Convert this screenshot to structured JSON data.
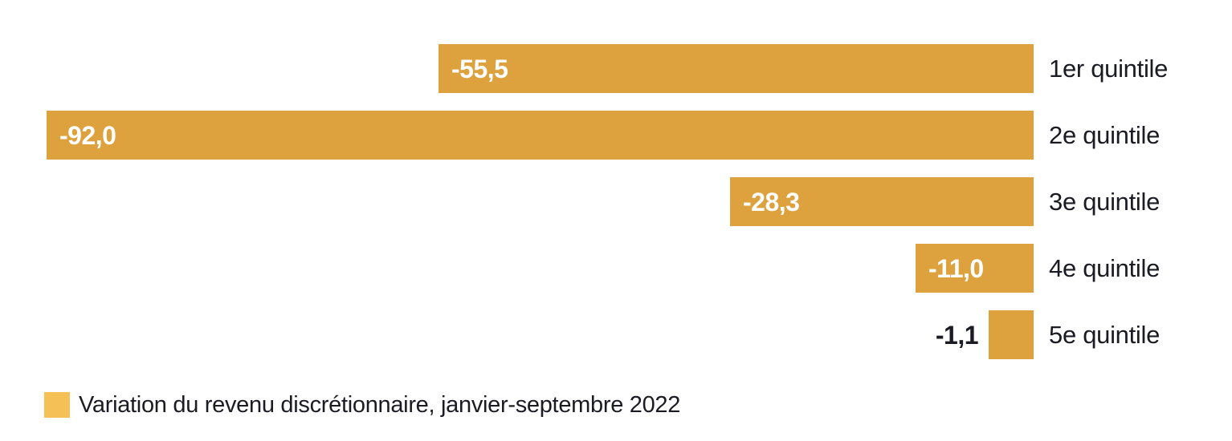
{
  "chart_data": {
    "type": "bar",
    "orientation": "horizontal",
    "categories": [
      "1er quintile",
      "2e quintile",
      "3e quintile",
      "4e quintile",
      "5e quintile"
    ],
    "series": [
      {
        "name": "Variation du revenu discrétionnaire, janvier-septembre 2022",
        "values": [
          -55.5,
          -92.0,
          -28.3,
          -11.0,
          -1.1
        ],
        "values_display": [
          "-55,5",
          "-92,0",
          "-28,3",
          "-11,0",
          "-1,1"
        ]
      }
    ],
    "value_axis_range": [
      -92,
      0
    ],
    "grid": false,
    "axes_shown": false,
    "legend_position": "bottom-left",
    "colors": {
      "bar": "#DDA13D",
      "legend_swatch": "#F5C157",
      "value_label_inside": "#FFFFFF",
      "value_label_outside": "#1B1B23",
      "category_label": "#1B1B23",
      "background": "#FFFFFF"
    }
  },
  "legend": {
    "label": "Variation du revenu discrétionnaire, janvier-septembre 2022"
  }
}
